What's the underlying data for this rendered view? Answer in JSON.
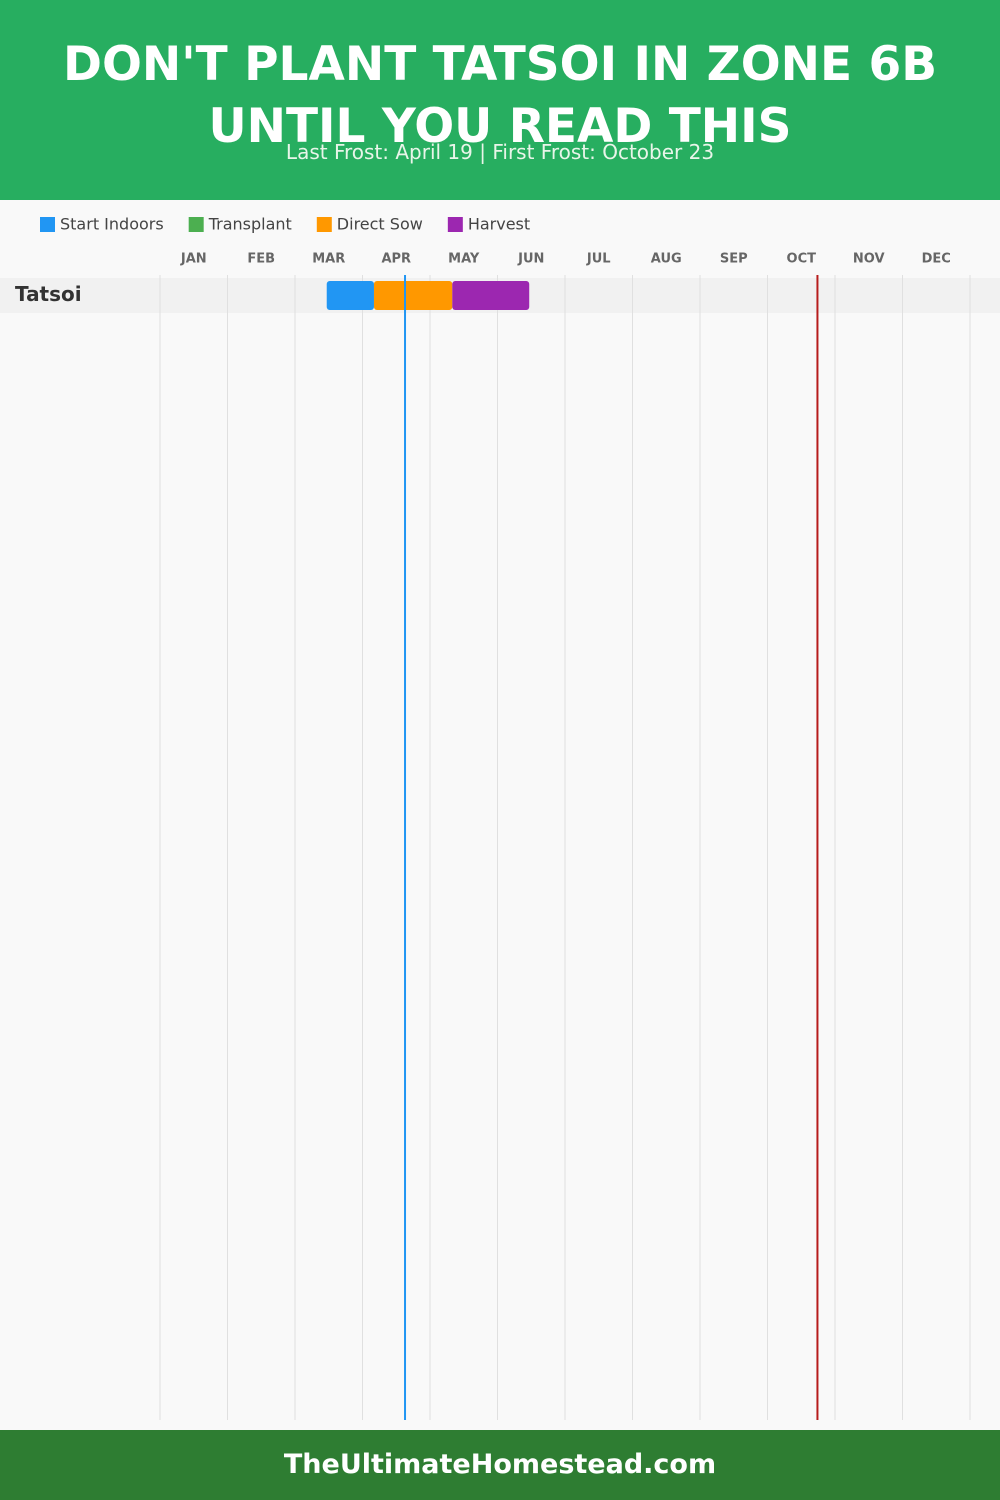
{
  "chart_data": {
    "type": "gantt",
    "title": "DON'T PLANT TATSOI IN ZONE 6B UNTIL YOU READ THIS",
    "subtitle": "Last Frost: April 19 | First Frost: October 23",
    "series": [
      {
        "name": "Start Indoors",
        "color": "#2196f3"
      },
      {
        "name": "Transplant",
        "color": "#4caf50"
      },
      {
        "name": "Direct Sow",
        "color": "#ff9800"
      },
      {
        "name": "Harvest",
        "color": "#9c27b0"
      }
    ],
    "categories": [
      "JAN",
      "FEB",
      "MAR",
      "APR",
      "MAY",
      "JUN",
      "JUL",
      "AUG",
      "SEP",
      "OCT",
      "NOV",
      "DEC"
    ],
    "xlim": [
      0,
      12
    ],
    "xticks": [
      0,
      1,
      2,
      3,
      4,
      5,
      6,
      7,
      8,
      9,
      10,
      11,
      12
    ],
    "grid": true,
    "crops": [
      {
        "name": "Tatsoi",
        "bars": [
          {
            "series": 0,
            "start": 2.47,
            "end": 3.17
          },
          {
            "series": 2,
            "start": 3.17,
            "end": 4.33
          },
          {
            "series": 3,
            "start": 4.33,
            "end": 5.47
          }
        ]
      }
    ],
    "markers": [
      {
        "value": 3.63,
        "color": "#2196f3"
      },
      {
        "value": 9.74,
        "color": "#b71c1c"
      }
    ],
    "footer": "TheUltimateHomestead.com"
  }
}
